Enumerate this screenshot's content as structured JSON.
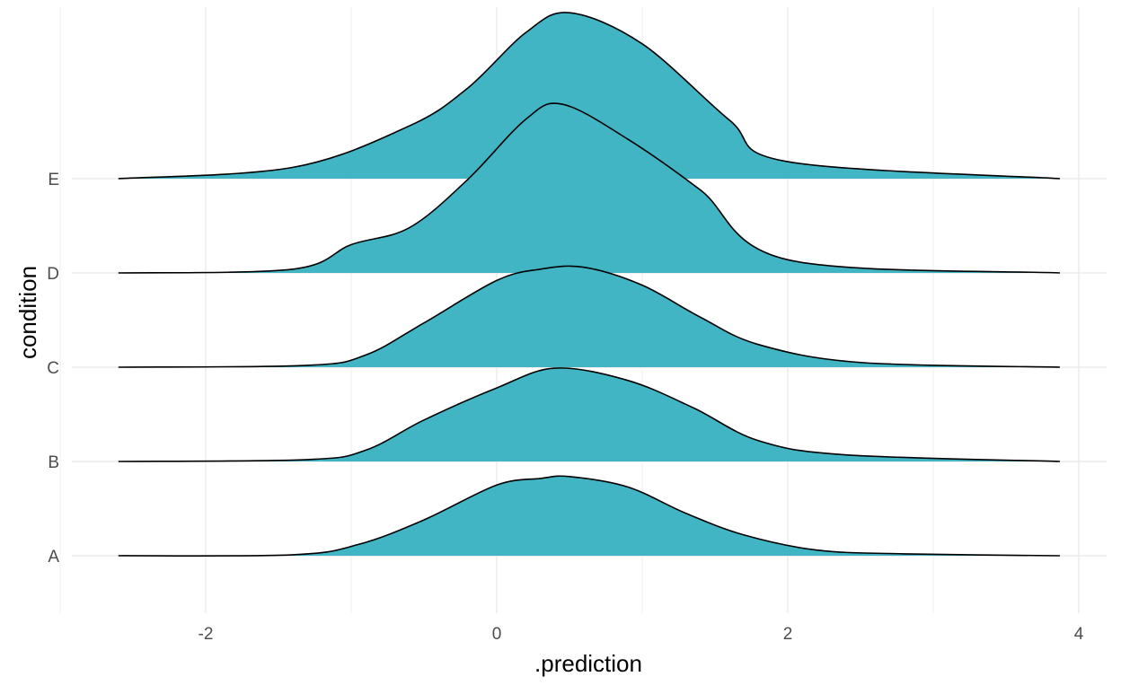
{
  "chart_data": {
    "type": "area",
    "subtype": "ridgeline-density",
    "title": "",
    "xlabel": ".prediction",
    "ylabel": "condition",
    "xlim": [
      -3,
      4.05
    ],
    "x_ticks": [
      -2,
      0,
      2,
      4
    ],
    "x_tick_labels": [
      "-2",
      "0",
      "2",
      "4"
    ],
    "categories": [
      "A",
      "B",
      "C",
      "D",
      "E"
    ],
    "grid": true,
    "legend": "none",
    "colors": {
      "fill": "#42B5C5",
      "outline": "#000000",
      "grid": "#EBEBEB",
      "tick_text": "#4D4D4D"
    },
    "series": [
      {
        "category": "A",
        "points": [
          [
            -2.6,
            0
          ],
          [
            -1.4,
            0.01
          ],
          [
            -0.95,
            0.12
          ],
          [
            -0.5,
            0.38
          ],
          [
            0,
            0.75
          ],
          [
            0.3,
            0.82
          ],
          [
            0.5,
            0.84
          ],
          [
            0.9,
            0.73
          ],
          [
            1.3,
            0.45
          ],
          [
            1.7,
            0.22
          ],
          [
            2.2,
            0.06
          ],
          [
            2.8,
            0.02
          ],
          [
            3.87,
            0
          ]
        ]
      },
      {
        "category": "B",
        "points": [
          [
            -2.6,
            0
          ],
          [
            -1.3,
            0.02
          ],
          [
            -0.9,
            0.12
          ],
          [
            -0.5,
            0.44
          ],
          [
            0,
            0.78
          ],
          [
            0.4,
            0.99
          ],
          [
            0.9,
            0.86
          ],
          [
            1.35,
            0.57
          ],
          [
            1.8,
            0.22
          ],
          [
            2.4,
            0.07
          ],
          [
            3.87,
            0
          ]
        ]
      },
      {
        "category": "C",
        "points": [
          [
            -2.6,
            0
          ],
          [
            -1.3,
            0.02
          ],
          [
            -0.9,
            0.13
          ],
          [
            -0.5,
            0.47
          ],
          [
            0,
            0.92
          ],
          [
            0.3,
            1.04
          ],
          [
            0.6,
            1.06
          ],
          [
            1.0,
            0.87
          ],
          [
            1.4,
            0.53
          ],
          [
            1.8,
            0.24
          ],
          [
            2.5,
            0.05
          ],
          [
            3.87,
            0
          ]
        ]
      },
      {
        "category": "D",
        "points": [
          [
            -2.6,
            0
          ],
          [
            -1.4,
            0.04
          ],
          [
            -1.0,
            0.3
          ],
          [
            -0.6,
            0.48
          ],
          [
            -0.2,
            0.99
          ],
          [
            0.2,
            1.63
          ],
          [
            0.45,
            1.79
          ],
          [
            0.9,
            1.42
          ],
          [
            1.4,
            0.88
          ],
          [
            2.0,
            0.14
          ],
          [
            3.87,
            0
          ]
        ]
      },
      {
        "category": "E",
        "points": [
          [
            -2.6,
            0
          ],
          [
            -1.4,
            0.12
          ],
          [
            -0.6,
            0.56
          ],
          [
            -0.2,
            0.96
          ],
          [
            0.2,
            1.55
          ],
          [
            0.5,
            1.76
          ],
          [
            1.0,
            1.43
          ],
          [
            1.6,
            0.62
          ],
          [
            2.0,
            0.18
          ],
          [
            3.87,
            0
          ]
        ]
      }
    ]
  }
}
